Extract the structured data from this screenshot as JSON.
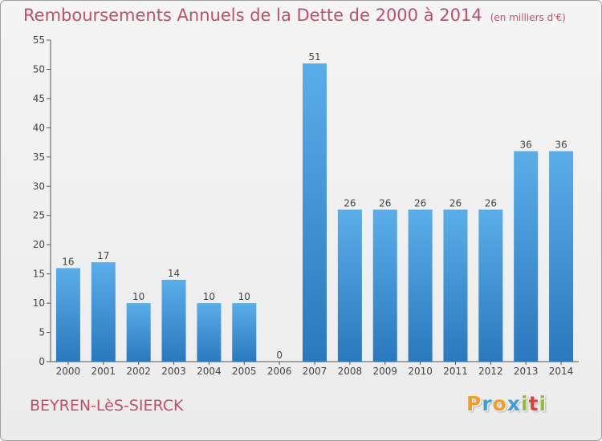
{
  "chart_data": {
    "type": "bar",
    "title": "Remboursements Annuels de la Dette de 2000 à 2014",
    "subtitle": "(en milliers d'€)",
    "categories": [
      "2000",
      "2001",
      "2002",
      "2003",
      "2004",
      "2005",
      "2006",
      "2007",
      "2008",
      "2009",
      "2010",
      "2011",
      "2012",
      "2013",
      "2014"
    ],
    "values": [
      16,
      17,
      10,
      14,
      10,
      10,
      0,
      51,
      26,
      26,
      26,
      26,
      26,
      36,
      36
    ],
    "ylim": [
      0,
      55
    ],
    "yticks": [
      0,
      5,
      10,
      15,
      20,
      25,
      30,
      35,
      40,
      45,
      50,
      55
    ],
    "grid": false,
    "bar_color": "#3d8fd6"
  },
  "footer": {
    "place": "BEYREN-LèS-SIERCK",
    "logo": [
      "P",
      "r",
      "o",
      "x",
      "i",
      "t",
      "i"
    ],
    "logo_colors": [
      "#f0a020",
      "#3da0d8",
      "#f0a020",
      "#3da0d8",
      "#90c030",
      "#e04040",
      "#90c030"
    ]
  }
}
